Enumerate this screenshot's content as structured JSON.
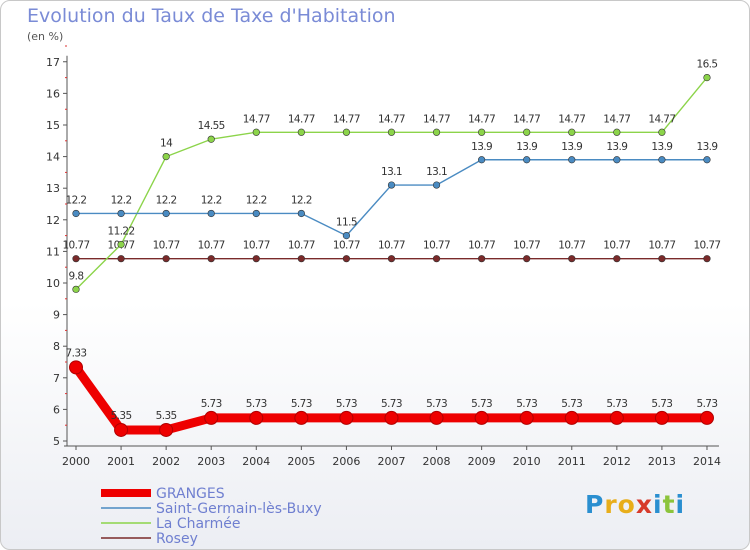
{
  "title": "Evolution du Taux de Taxe d'Habitation",
  "unit_label": "(en %)",
  "logo": {
    "text": "Proxiti",
    "letters": [
      "P",
      "r",
      "o",
      "x",
      "i",
      "t",
      "i"
    ],
    "colors": [
      "#2a8fd0",
      "#e8ae1a",
      "#e8ae1a",
      "#d73a2a",
      "#2a8fd0",
      "#8cc43c",
      "#2a8fd0"
    ]
  },
  "chart_data": {
    "type": "line",
    "x": [
      "2000",
      "2001",
      "2002",
      "2003",
      "2004",
      "2005",
      "2006",
      "2007",
      "2008",
      "2009",
      "2010",
      "2011",
      "2012",
      "2013",
      "2014"
    ],
    "ylim": [
      5,
      17
    ],
    "yticks": [
      "5",
      "6",
      "7",
      "8",
      "9",
      "10",
      "11",
      "12",
      "13",
      "14",
      "15",
      "16",
      "17"
    ],
    "grid": false,
    "legend_position": "bottom-left",
    "series": [
      {
        "name": "GRANGES",
        "color": "#ee0000",
        "values": [
          7.33,
          5.35,
          5.35,
          5.73,
          5.73,
          5.73,
          5.73,
          5.73,
          5.73,
          5.73,
          5.73,
          5.73,
          5.73,
          5.73,
          5.73
        ],
        "labels": [
          "7.33",
          "5.35",
          "5.35",
          "5.73",
          "5.73",
          "5.73",
          "5.73",
          "5.73",
          "5.73",
          "5.73",
          "5.73",
          "5.73",
          "5.73",
          "5.73",
          "5.73"
        ]
      },
      {
        "name": "Saint-Germain-lès-Buxy",
        "color": "#4a8bc2",
        "values": [
          12.2,
          12.2,
          12.2,
          12.2,
          12.2,
          12.2,
          11.5,
          13.1,
          13.1,
          13.9,
          13.9,
          13.9,
          13.9,
          13.9,
          13.9
        ],
        "labels": [
          "12.2",
          "12.2",
          "12.2",
          "12.2",
          "12.2",
          "12.2",
          "11.5",
          "13.1",
          "13.1",
          "13.9",
          "13.9",
          "13.9",
          "13.9",
          "13.9",
          "13.9"
        ]
      },
      {
        "name": "La Charmée",
        "color": "#8cd44a",
        "values": [
          9.8,
          11.22,
          14,
          14.55,
          14.77,
          14.77,
          14.77,
          14.77,
          14.77,
          14.77,
          14.77,
          14.77,
          14.77,
          14.77,
          16.5
        ],
        "labels": [
          "9.8",
          "11.22",
          "14",
          "14.55",
          "14.77",
          "14.77",
          "14.77",
          "14.77",
          "14.77",
          "14.77",
          "14.77",
          "14.77",
          "14.77",
          "14.77",
          "16.5"
        ]
      },
      {
        "name": "Rosey",
        "color": "#7a2a2a",
        "values": [
          10.77,
          10.77,
          10.77,
          10.77,
          10.77,
          10.77,
          10.77,
          10.77,
          10.77,
          10.77,
          10.77,
          10.77,
          10.77,
          10.77,
          10.77
        ],
        "labels": [
          "10.77",
          "10.77",
          "10.77",
          "10.77",
          "10.77",
          "10.77",
          "10.77",
          "10.77",
          "10.77",
          "10.77",
          "10.77",
          "10.77",
          "10.77",
          "10.77",
          "10.77"
        ]
      }
    ]
  }
}
